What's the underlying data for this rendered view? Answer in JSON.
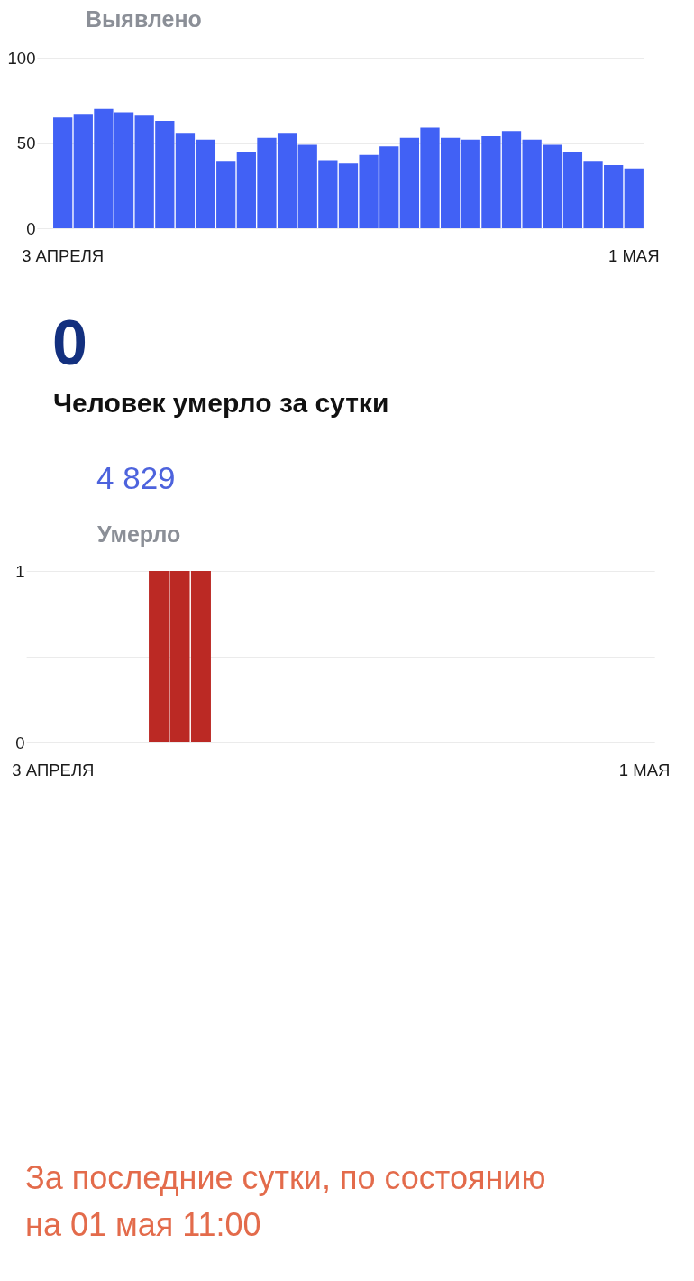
{
  "chart_data": [
    {
      "type": "bar",
      "title": "Выявлено",
      "categories": [
        "3 АПРЕЛЯ",
        null,
        null,
        null,
        null,
        null,
        null,
        null,
        null,
        null,
        null,
        null,
        null,
        null,
        null,
        null,
        null,
        null,
        null,
        null,
        null,
        null,
        null,
        null,
        null,
        null,
        null,
        null,
        "1 МАЯ"
      ],
      "values": [
        65,
        67,
        70,
        68,
        66,
        63,
        56,
        52,
        39,
        45,
        53,
        56,
        49,
        40,
        38,
        43,
        48,
        53,
        59,
        53,
        52,
        54,
        57,
        52,
        49,
        45,
        39,
        37,
        35
      ],
      "color": "#4161f5",
      "ylim": [
        0,
        100
      ],
      "yticks": [
        0,
        50,
        100
      ],
      "grid": "y"
    },
    {
      "type": "other",
      "annotations": [
        "0",
        "Человек умерло за сутки",
        "4 829"
      ]
    },
    {
      "type": "bar",
      "title": "Умерло",
      "categories": [
        "3 АПРЕЛЯ",
        null,
        null,
        null,
        null,
        null,
        null,
        null,
        null,
        null,
        null,
        null,
        null,
        null,
        null,
        null,
        null,
        null,
        null,
        null,
        null,
        null,
        null,
        null,
        null,
        null,
        null,
        null,
        "1 МАЯ"
      ],
      "values": [
        0,
        0,
        0,
        0,
        0,
        1,
        1,
        1,
        0,
        0,
        0,
        0,
        0,
        0,
        0,
        0,
        0,
        0,
        0,
        0,
        0,
        0,
        0,
        0,
        0,
        0,
        0,
        0,
        0
      ],
      "color": "#bb2924",
      "ylim": [
        0,
        1
      ],
      "yticks": [
        0,
        {
          "value": 0.5,
          "label": null
        },
        1
      ],
      "grid": "y"
    },
    {
      "type": "other",
      "annotations": [
        "За последние сутки, по состоянию на 01 мая 11:00"
      ]
    }
  ]
}
